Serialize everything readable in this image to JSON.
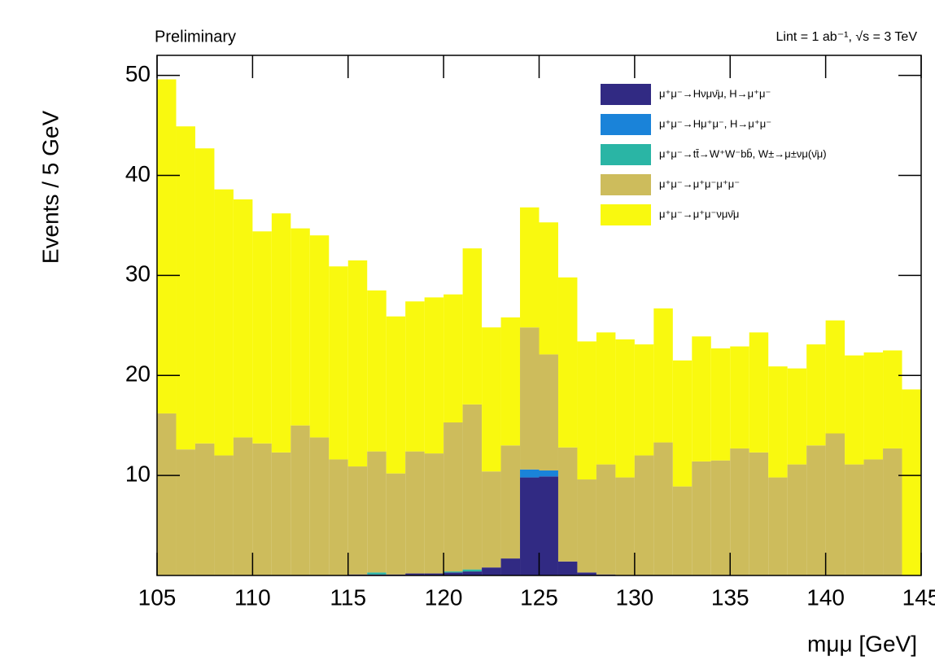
{
  "chart_data": {
    "type": "stacked-histogram",
    "title": "Preliminary",
    "subtitle": "Lint = 1 ab⁻¹, √s = 3 TeV",
    "y_label": "Events / 5 GeV",
    "x_label": "mμμ   [GeV]",
    "bins": [
      105,
      106,
      107,
      108,
      109,
      110,
      111,
      112,
      113,
      114,
      115,
      116,
      117,
      118,
      119,
      120,
      121,
      122,
      123,
      124,
      125,
      126,
      127,
      128,
      129,
      130,
      131,
      132,
      133,
      134,
      135,
      136,
      137,
      138,
      139,
      140,
      141,
      142,
      143,
      144,
      145
    ],
    "xlim": [
      105,
      145
    ],
    "xticks": [
      105,
      110,
      115,
      120,
      125,
      130,
      135,
      140,
      145
    ],
    "ylim": [
      0,
      52
    ],
    "yticks": [
      10,
      20,
      30,
      40,
      50
    ],
    "series": [
      {
        "name": "μ⁺μ⁻→Hνμν̄μ, H→μ⁺μ⁻",
        "color": "#312a83",
        "values": [
          0,
          0,
          0,
          0,
          0,
          0,
          0,
          0,
          0,
          0,
          0.1,
          0.1,
          0.1,
          0.2,
          0.2,
          0.3,
          0.4,
          0.8,
          1.7,
          9.8,
          9.9,
          1.4,
          0.3,
          0.1,
          0,
          0,
          0,
          0,
          0,
          0,
          0,
          0,
          0,
          0,
          0,
          0,
          0,
          0,
          0,
          0
        ]
      },
      {
        "name": "μ⁺μ⁻→Hμ⁺μ⁻, H→μ⁺μ⁻",
        "color": "#1a83d9",
        "values": [
          0,
          0,
          0,
          0,
          0,
          0,
          0,
          0,
          0,
          0,
          0,
          0,
          0,
          0,
          0,
          0,
          0,
          0,
          0,
          0.8,
          0.6,
          0,
          0,
          0,
          0,
          0,
          0,
          0,
          0,
          0,
          0,
          0,
          0,
          0,
          0,
          0,
          0,
          0,
          0,
          0
        ]
      },
      {
        "name": "μ⁺μ⁻→tt̄→W⁺W⁻bb̄, W±→μ±νμ(ν̄μ)",
        "color": "#2ab5a5",
        "values": [
          0,
          0,
          0,
          0,
          0,
          0,
          0,
          0,
          0,
          0,
          0,
          0.2,
          0,
          0,
          0,
          0.1,
          0.2,
          0,
          0,
          0,
          0,
          0,
          0,
          0,
          0,
          0,
          0,
          0,
          0,
          0,
          0,
          0,
          0,
          0,
          0,
          0,
          0,
          0,
          0,
          0
        ]
      },
      {
        "name": "μ⁺μ⁻→μ⁺μ⁻μ⁺μ⁻",
        "color": "#cdbc5c",
        "values": [
          16.2,
          12.6,
          13.2,
          12.0,
          13.8,
          13.2,
          12.3,
          15.0,
          13.8,
          11.6,
          10.8,
          12.1,
          10.1,
          12.2,
          12.0,
          14.9,
          16.5,
          9.6,
          11.3,
          14.2,
          11.6,
          11.4,
          9.3,
          11.0,
          9.8,
          12.0,
          13.3,
          8.9,
          11.4,
          11.5,
          12.7,
          12.3,
          9.8,
          11.1,
          13.0,
          14.2,
          11.1,
          11.6,
          12.7,
          0
        ]
      },
      {
        "name": "μ⁺μ⁻→μ⁺μ⁻νμν̄μ",
        "color": "#f9f90f",
        "values": [
          33.4,
          32.3,
          29.5,
          26.6,
          23.8,
          21.2,
          23.9,
          19.7,
          20.2,
          19.3,
          20.6,
          16.1,
          15.7,
          15.0,
          15.6,
          12.8,
          15.6,
          14.4,
          12.8,
          12.0,
          13.2,
          17.0,
          13.8,
          13.2,
          13.8,
          11.1,
          13.4,
          12.6,
          12.5,
          11.2,
          10.2,
          12.0,
          11.1,
          9.6,
          10.1,
          11.3,
          10.9,
          10.7,
          9.8,
          18.6
        ]
      }
    ]
  }
}
